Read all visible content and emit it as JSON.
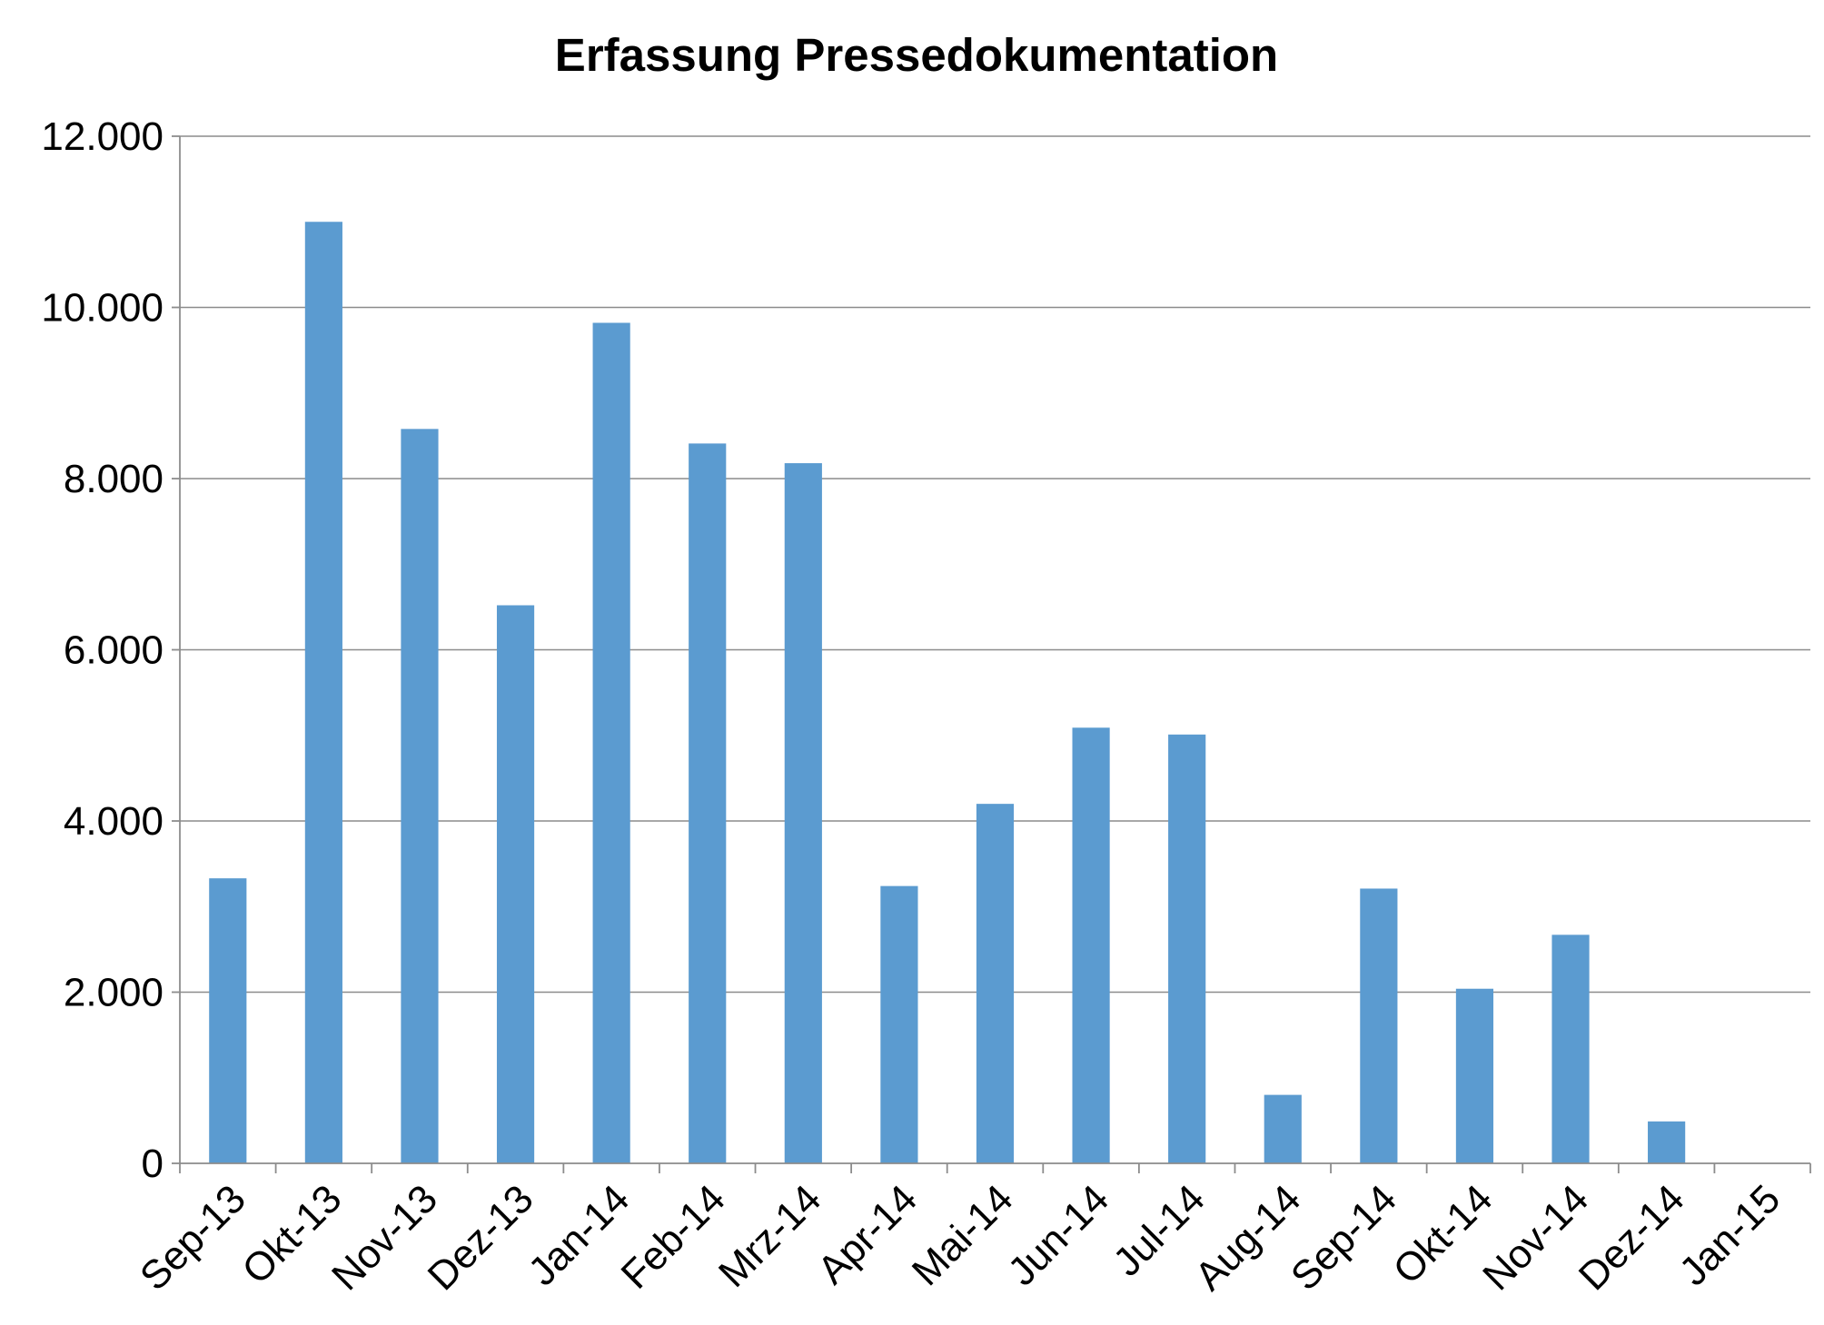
{
  "chart_data": {
    "type": "bar",
    "title": "Erfassung Pressedokumentation",
    "xlabel": "",
    "ylabel": "",
    "categories": [
      "Sep-13",
      "Okt-13",
      "Nov-13",
      "Dez-13",
      "Jan-14",
      "Feb-14",
      "Mrz-14",
      "Apr-14",
      "Mai-14",
      "Jun-14",
      "Jul-14",
      "Aug-14",
      "Sep-14",
      "Okt-14",
      "Nov-14",
      "Dez-14",
      "Jan-15"
    ],
    "values": [
      3330,
      11000,
      8580,
      6520,
      9820,
      8410,
      8180,
      3240,
      4200,
      5090,
      5010,
      800,
      3210,
      2040,
      2670,
      490,
      0
    ],
    "ylim": [
      0,
      12000
    ],
    "yticks": [
      0,
      2000,
      4000,
      6000,
      8000,
      10000,
      12000
    ],
    "ytick_labels": [
      "0",
      "2.000",
      "4.000",
      "6.000",
      "8.000",
      "10.000",
      "12.000"
    ],
    "grid": true,
    "legend": "none",
    "bar_color": "#5b9bd0"
  }
}
